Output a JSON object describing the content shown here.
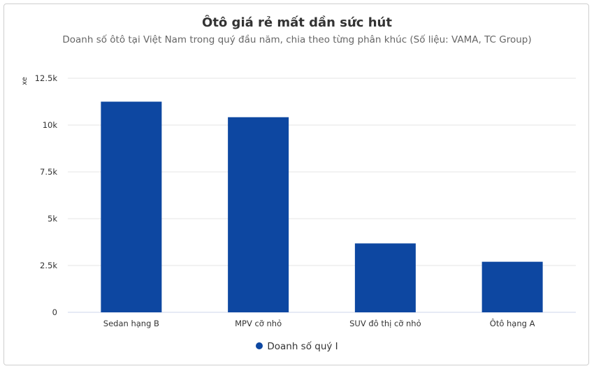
{
  "chart_data": {
    "type": "bar",
    "title": "Ôtô giá rẻ mất dần sức hút",
    "subtitle": "Doanh số ôtô tại Việt Nam trong quý đầu năm, chia theo từng phân khúc (Số liệu: VAMA, TC Group)",
    "ylabel": "xe",
    "xlabel": "",
    "categories": [
      "Sedan hạng B",
      "MPV cỡ nhỏ",
      "SUV đô thị cỡ nhỏ",
      "Ôtô hạng A"
    ],
    "series": [
      {
        "name": "Doanh số quý I",
        "values": [
          11250,
          10420,
          3680,
          2700
        ],
        "color": "#0d47a1"
      }
    ],
    "ylim": [
      0,
      12500
    ],
    "yticks": [
      0,
      2500,
      5000,
      7500,
      10000,
      12500
    ],
    "ytick_labels": [
      "0",
      "2.5k",
      "5k",
      "7.5k",
      "10k",
      "12.5k"
    ],
    "grid": true,
    "legend_position": "bottom-center"
  }
}
